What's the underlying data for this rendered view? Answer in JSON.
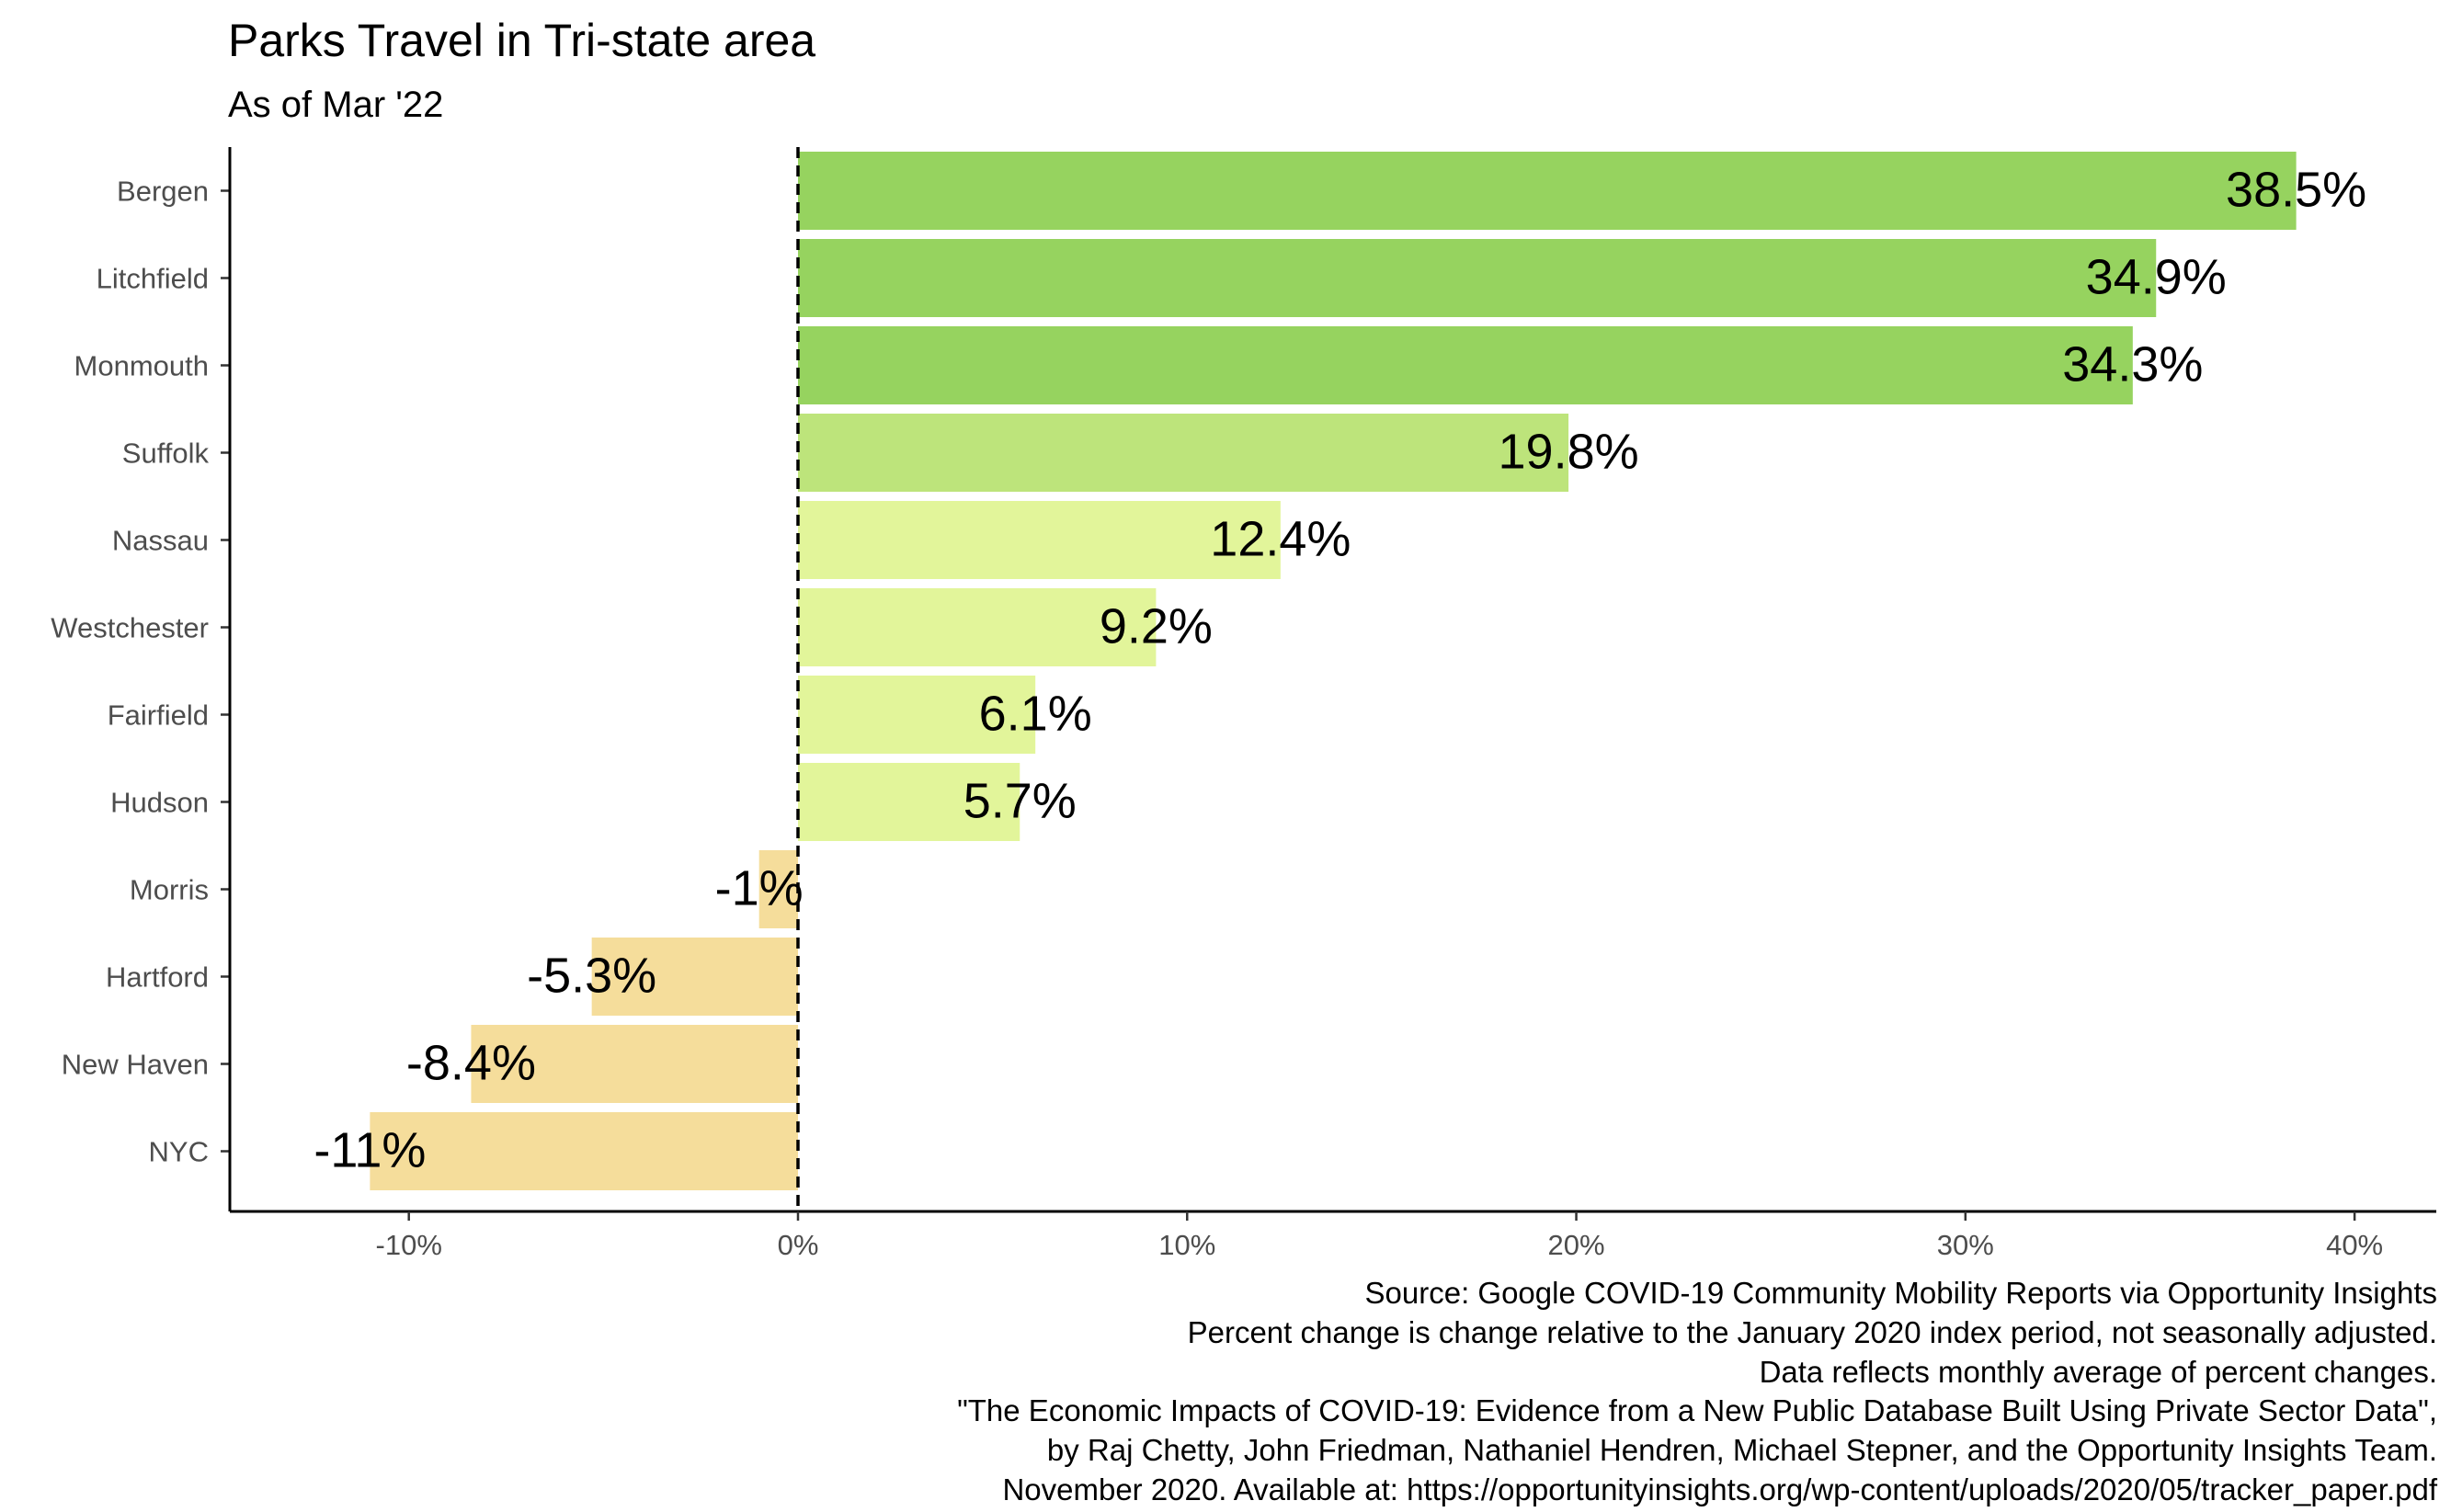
{
  "chart_data": {
    "type": "bar",
    "orientation": "horizontal",
    "title": "Parks Travel in Tri-state area",
    "subtitle": "As of Mar '22",
    "categories": [
      "Bergen",
      "Litchfield",
      "Monmouth",
      "Suffolk",
      "Nassau",
      "Westchester",
      "Fairfield",
      "Hudson",
      "Morris",
      "Hartford",
      "New Haven",
      "NYC"
    ],
    "values": [
      38.5,
      34.9,
      34.3,
      19.8,
      12.4,
      9.2,
      6.1,
      5.7,
      -1,
      -5.3,
      -8.4,
      -11
    ],
    "labels": [
      "38.5%",
      "34.9%",
      "34.3%",
      "19.8%",
      "12.4%",
      "9.2%",
      "6.1%",
      "5.7%",
      "-1%",
      "-5.3%",
      "-8.4%",
      "-11%"
    ],
    "colors": [
      "#96d35f",
      "#96d35f",
      "#96d35f",
      "#bde47b",
      "#e2f59a",
      "#e2f59a",
      "#e2f59a",
      "#e2f59a",
      "#f5dd9b",
      "#f5dd9b",
      "#f5dd9b",
      "#f5dd9b"
    ],
    "xlim": [
      -14.6,
      42.1
    ],
    "x_ticks": [
      -10,
      0,
      10,
      20,
      30,
      40
    ],
    "x_tick_labels": [
      "-10%",
      "0%",
      "10%",
      "20%",
      "30%",
      "40%"
    ],
    "reference_line": 0,
    "xlabel": "",
    "ylabel": "",
    "grid": false,
    "legend": "none",
    "caption": [
      "Source: Google COVID-19 Community Mobility Reports via Opportunity Insights",
      "Percent change is change relative to the January 2020 index period, not seasonally adjusted.",
      "Data reflects monthly average of percent changes.",
      "\"The Economic Impacts of COVID-19: Evidence from a New Public Database Built Using Private Sector Data\",",
      "by Raj Chetty, John Friedman, Nathaniel Hendren, Michael Stepner, and the Opportunity Insights Team.",
      "November 2020. Available at: https://opportunityinsights.org/wp-content/uploads/2020/05/tracker_paper.pdf"
    ]
  }
}
